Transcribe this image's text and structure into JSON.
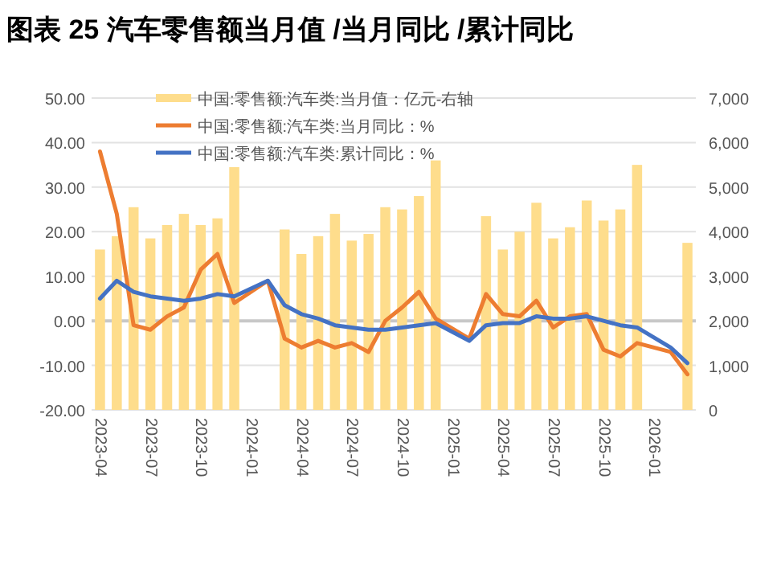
{
  "chart_data": {
    "type": "bar",
    "title": "图表 25  汽车零售额当月值 /当月同比 /累计同比",
    "categories": [
      "2023-04",
      null,
      null,
      "2023-07",
      null,
      null,
      "2023-10",
      null,
      null,
      "2024-01",
      null,
      null,
      "2024-04",
      null,
      null,
      "2024-07",
      null,
      null,
      "2024-10",
      null,
      null,
      "2025-01",
      null,
      null,
      "2025-04",
      null,
      null,
      "2025-07",
      null,
      null,
      "2025-10",
      null,
      null,
      "2026-01",
      null,
      null
    ],
    "series": [
      {
        "name": "中国:零售额:汽车类:当月值：亿元-右轴",
        "axis": "y2",
        "color": "#fedd8c",
        "values": [
          3600,
          3900,
          4550,
          3850,
          4150,
          4400,
          4150,
          4300,
          5450,
          null,
          null,
          4050,
          3500,
          3900,
          4400,
          3800,
          3950,
          4550,
          4500,
          4800,
          5600,
          null,
          null,
          4350,
          3600,
          4000,
          4650,
          3850,
          4100,
          4700,
          4250,
          4500,
          5500,
          null,
          null,
          3750
        ]
      },
      {
        "name": "中国:零售额:汽车类:当月同比：%",
        "type": "line",
        "color": "#ed7d31",
        "values": [
          38,
          24,
          -1,
          -2,
          1,
          3,
          11.5,
          15,
          4,
          null,
          9,
          -4,
          -6,
          -4.5,
          -6,
          -5,
          -7,
          0,
          3,
          6.5,
          0.5,
          null,
          -4,
          6,
          1.5,
          1,
          4.5,
          -1.5,
          1,
          1.5,
          -6.5,
          -8,
          -5,
          null,
          -7,
          -12
        ]
      },
      {
        "name": "中国:零售额:汽车类:累计同比：%",
        "type": "line",
        "color": "#4472c4",
        "values": [
          5,
          9,
          6.5,
          5.5,
          5,
          4.5,
          5,
          6,
          5.5,
          null,
          9,
          3.5,
          1.5,
          0.5,
          -1,
          -1.5,
          -2,
          -2,
          -1.5,
          -1,
          -0.5,
          null,
          -4.5,
          -1,
          -0.5,
          -0.5,
          1,
          0.5,
          0.5,
          1,
          0,
          -1,
          -1.5,
          null,
          -6,
          -9.5
        ]
      }
    ],
    "ylim": [
      -20,
      50
    ],
    "yticks": [
      {
        "value": -20,
        "label": "-20.00"
      },
      {
        "value": -10,
        "label": "-10.00"
      },
      {
        "value": 0,
        "label": "0.00"
      },
      {
        "value": 10,
        "label": "10.00"
      },
      {
        "value": 20,
        "label": "20.00"
      },
      {
        "value": 30,
        "label": "30.00"
      },
      {
        "value": 40,
        "label": "40.00"
      },
      {
        "value": 50,
        "label": "50.00"
      }
    ],
    "y2lim": [
      0,
      7000
    ],
    "y2ticks": [
      0,
      {
        "value": 1000,
        "label": "1,000"
      },
      {
        "value": 2000,
        "label": "2,000"
      },
      {
        "value": 3000,
        "label": "3,000"
      },
      {
        "value": 4000,
        "label": "4,000"
      },
      {
        "value": 5000,
        "label": "5,000"
      },
      {
        "value": 6000,
        "label": "6,000"
      },
      {
        "value": 7000,
        "label": "7,000"
      }
    ],
    "grid": "y",
    "legend": "top left"
  }
}
